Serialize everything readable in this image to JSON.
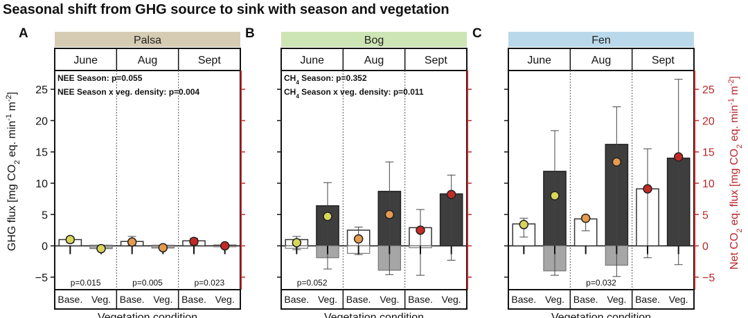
{
  "figure": {
    "title": "Seasonal shift from GHG source to sink with season and vegetation",
    "y_label": "GHG flux [mg CO2 eq. min-1 m-2]",
    "y_label_right": "Net CO2 eq. flux [mg CO2 eq. min-1 m-2]",
    "x_label": "Vegetation condition",
    "colors": {
      "site_palsa": "#d6ccb4",
      "site_bog": "#cde5b4",
      "site_fen": "#b9d9ea",
      "right_axis": "#c0282c",
      "veg_bar": "#3e3e3e",
      "veg_bar_neg": "#a6a6a6",
      "dot_june": "#d8d65a",
      "dot_aug": "#e59a4e",
      "dot_sept": "#c42a25"
    }
  },
  "chart_data": [
    {
      "type": "bar",
      "panel": "A",
      "site": "Palsa",
      "months": [
        "June",
        "Aug",
        "Sept"
      ],
      "categories": [
        "Base.",
        "Veg.",
        "Base.",
        "Veg.",
        "Base.",
        "Veg."
      ],
      "stats": [
        "NEE Season: p=0.055",
        "NEE Season x veg. density: p=0.004"
      ],
      "pvalues": [
        "p=0.015",
        "p=0.005",
        "p=0.023"
      ],
      "ylim": [
        -7,
        28
      ],
      "yticks": [
        -5,
        0,
        5,
        10,
        15,
        20,
        25
      ],
      "bars_positive": [
        1.0,
        0.05,
        0.7,
        0.05,
        0.8,
        0.1
      ],
      "bars_negative": [
        0,
        -0.45,
        0,
        -0.35,
        0,
        -0.15
      ],
      "error_bars": [
        [
          0.5,
          1.4
        ],
        [
          -0.6,
          0.1
        ],
        [
          0.1,
          1.5
        ],
        [
          -0.6,
          0.1
        ],
        [
          0.2,
          1.2
        ],
        [
          -0.1,
          0.3
        ]
      ],
      "net_flux": [
        1.0,
        -0.45,
        0.6,
        -0.3,
        0.7,
        0.0
      ]
    },
    {
      "type": "bar",
      "panel": "B",
      "site": "Bog",
      "months": [
        "June",
        "Aug",
        "Sept"
      ],
      "categories": [
        "Base.",
        "Veg.",
        "Base.",
        "Veg.",
        "Base.",
        "Veg."
      ],
      "stats": [
        "CH4 Season: p=0.352",
        "CH4 Season x veg. density: p=0.011"
      ],
      "pvalues": [
        "p=0.052",
        "",
        ""
      ],
      "ylim": [
        -7,
        28
      ],
      "yticks": [
        -5,
        0,
        5,
        10,
        15,
        20,
        25
      ],
      "bars_positive": [
        1.0,
        6.4,
        2.5,
        8.7,
        2.9,
        8.3
      ],
      "bars_negative": [
        -0.4,
        -1.9,
        -1.2,
        -3.9,
        -0.3,
        0
      ],
      "error_bars": [
        [
          -0.6,
          1.5
        ],
        [
          -3.7,
          10.1
        ],
        [
          -1.4,
          3.0
        ],
        [
          -4.6,
          13.4
        ],
        [
          -4.7,
          5.8
        ],
        [
          -2.3,
          11.3
        ]
      ],
      "net_flux": [
        0.5,
        4.7,
        1.1,
        5.0,
        2.5,
        8.2
      ]
    },
    {
      "type": "bar",
      "panel": "C",
      "site": "Fen",
      "months": [
        "June",
        "Aug",
        "Sept"
      ],
      "categories": [
        "Base.",
        "Veg.",
        "Base.",
        "Veg.",
        "Base.",
        "Veg."
      ],
      "stats": [],
      "pvalues": [
        "",
        "p=0.032",
        ""
      ],
      "ylim": [
        -7,
        28
      ],
      "yticks": [
        -5,
        0,
        5,
        10,
        15,
        20,
        25
      ],
      "right_yticks": [
        -5,
        0,
        5,
        10,
        15,
        20,
        25
      ],
      "bars_positive": [
        3.5,
        11.9,
        4.3,
        16.2,
        9.1,
        14.0
      ],
      "bars_negative": [
        0,
        -4.0,
        0,
        -3.1,
        0,
        0
      ],
      "error_bars": [
        [
          1.4,
          4.4
        ],
        [
          -4.7,
          18.4
        ],
        [
          2.4,
          4.8
        ],
        [
          -4.9,
          22.2
        ],
        [
          -1.9,
          15.5
        ],
        [
          -3.0,
          26.6
        ]
      ],
      "net_flux": [
        3.4,
        8.0,
        4.4,
        13.4,
        9.1,
        14.2
      ]
    }
  ]
}
